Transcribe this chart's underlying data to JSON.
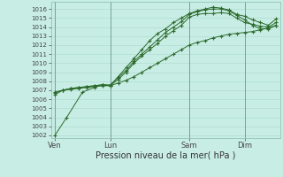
{
  "bg_color": "#c8ede4",
  "grid_color": "#a8d8cc",
  "line_color": "#2d6b2d",
  "marker_color": "#2d6b2d",
  "xlabel_text": "Pression niveau de la mer( hPa )",
  "xlabel_fontsize": 7.0,
  "yticks": [
    1002,
    1003,
    1004,
    1005,
    1006,
    1007,
    1008,
    1009,
    1010,
    1011,
    1012,
    1013,
    1014,
    1015,
    1016
  ],
  "ylim": [
    1001.7,
    1016.8
  ],
  "xtick_labels": [
    "Ven",
    "Lun",
    "Sam",
    "Dim"
  ],
  "xtick_positions": [
    0,
    28,
    68,
    96
  ],
  "xlim": [
    -2,
    114
  ],
  "vlines": [
    0,
    28,
    68,
    96
  ],
  "series": [
    [
      0,
      1002.0,
      6,
      1004.0,
      14,
      1006.8,
      20,
      1007.3,
      24,
      1007.6,
      28,
      1007.5,
      32,
      1008.5,
      36,
      1009.5,
      40,
      1010.5,
      44,
      1011.5,
      48,
      1012.5,
      52,
      1013.3,
      56,
      1013.8,
      60,
      1014.5,
      64,
      1015.0,
      68,
      1015.5,
      72,
      1015.8,
      76,
      1016.0,
      80,
      1016.2,
      84,
      1016.1,
      88,
      1015.9,
      92,
      1015.4,
      96,
      1015.2,
      100,
      1014.8,
      104,
      1014.5,
      108,
      1014.2,
      112,
      1014.9
    ],
    [
      0,
      1006.5,
      4,
      1007.0,
      8,
      1007.2,
      12,
      1007.3,
      16,
      1007.4,
      20,
      1007.5,
      24,
      1007.6,
      28,
      1007.5,
      32,
      1008.2,
      36,
      1009.0,
      40,
      1010.0,
      44,
      1010.8,
      48,
      1011.5,
      52,
      1012.2,
      56,
      1013.0,
      60,
      1013.6,
      64,
      1014.2,
      68,
      1015.1,
      72,
      1015.4,
      76,
      1015.5,
      80,
      1015.5,
      84,
      1015.6,
      88,
      1015.5,
      92,
      1015.0,
      96,
      1014.5,
      100,
      1014.3,
      104,
      1014.1,
      108,
      1014.0,
      112,
      1014.5
    ],
    [
      0,
      1006.7,
      4,
      1007.0,
      8,
      1007.2,
      12,
      1007.3,
      16,
      1007.4,
      20,
      1007.5,
      24,
      1007.6,
      28,
      1007.6,
      32,
      1008.4,
      36,
      1009.2,
      40,
      1010.2,
      44,
      1011.0,
      48,
      1011.8,
      52,
      1012.6,
      56,
      1013.4,
      60,
      1014.0,
      64,
      1014.6,
      68,
      1015.4,
      72,
      1015.7,
      76,
      1015.9,
      80,
      1016.0,
      84,
      1016.0,
      88,
      1015.8,
      92,
      1015.3,
      96,
      1014.8,
      100,
      1014.2,
      104,
      1013.8,
      108,
      1013.8,
      112,
      1014.2
    ],
    [
      0,
      1006.8,
      4,
      1007.0,
      8,
      1007.1,
      12,
      1007.2,
      16,
      1007.3,
      20,
      1007.4,
      24,
      1007.5,
      28,
      1007.5,
      32,
      1007.8,
      36,
      1008.1,
      40,
      1008.5,
      44,
      1009.0,
      48,
      1009.5,
      52,
      1010.0,
      56,
      1010.5,
      60,
      1011.0,
      64,
      1011.5,
      68,
      1012.0,
      72,
      1012.3,
      76,
      1012.5,
      80,
      1012.8,
      84,
      1013.0,
      88,
      1013.2,
      92,
      1013.3,
      96,
      1013.4,
      100,
      1013.5,
      104,
      1013.7,
      108,
      1013.9,
      112,
      1014.2
    ]
  ]
}
